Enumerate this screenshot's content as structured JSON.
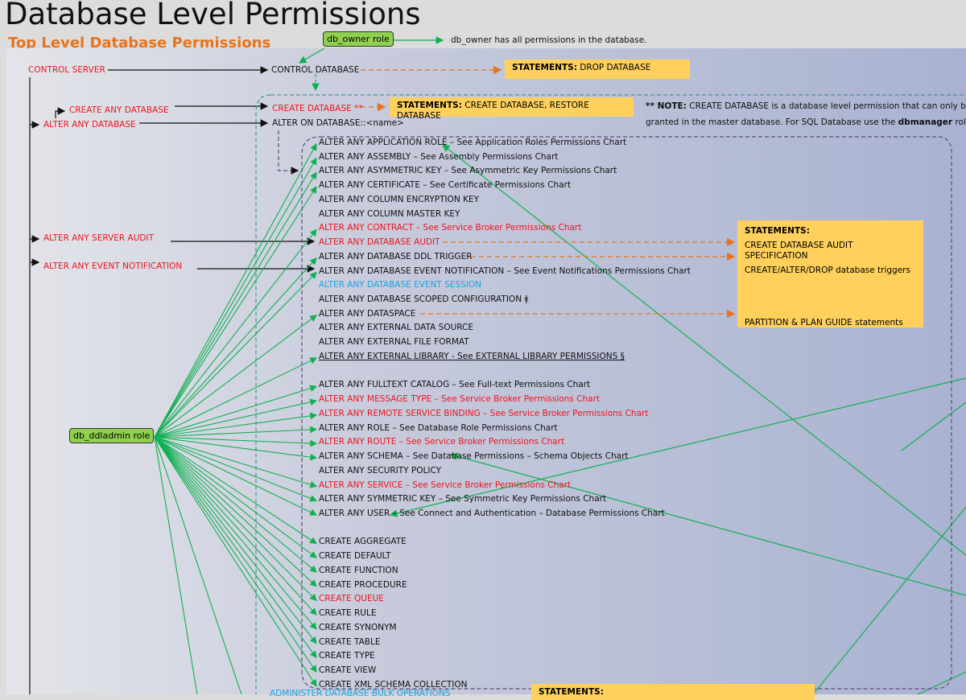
{
  "title": "Database Level Permissions",
  "subtitle": "Top Level Database Permissions",
  "roles": {
    "db_owner": "db_owner role",
    "db_owner_note": "db_owner has all permissions in the database.",
    "db_ddladmin": "db_ddladmin role"
  },
  "server_perms": {
    "control_server": "CONTROL SERVER",
    "create_any_database": "CREATE ANY DATABASE",
    "alter_any_database": "ALTER ANY DATABASE",
    "alter_any_server_audit": "ALTER ANY SERVER AUDIT",
    "alter_any_event_notification": "ALTER ANY EVENT NOTIFICATION"
  },
  "db_perms": {
    "control_database": "CONTROL DATABASE",
    "create_database": "CREATE DATABASE **",
    "alter_on_database": "ALTER ON DATABASE::<name>",
    "administer_bulk": "ADMINISTER DATABASE BULK OPERATIONS"
  },
  "statements": {
    "label": "STATEMENTS:",
    "drop": "DROP DATABASE",
    "create": "CREATE DATABASE, RESTORE DATABASE",
    "audit": "CREATE DATABASE AUDIT SPECIFICATION",
    "triggers": "CREATE/ALTER/DROP database triggers",
    "partition": "PARTITION & PLAN GUIDE statements"
  },
  "note": {
    "label": "** NOTE:",
    "text1": "CREATE DATABASE is a database level permission that can only be",
    "text2a": "granted in the master database. For SQL Database use the ",
    "text2b": "dbmanager",
    "text2c": " role."
  },
  "items": [
    {
      "text": "ALTER ANY APPLICATION ROLE – See Application Roles Permissions Chart",
      "color": "black",
      "ddl": true
    },
    {
      "text": "ALTER ANY ASSEMBLY – See Assembly Permissions Chart",
      "color": "black",
      "ddl": true
    },
    {
      "text": "ALTER ANY ASYMMETRIC KEY – See Asymmetric Key Permissions Chart",
      "color": "black",
      "ddl": true
    },
    {
      "text": "ALTER ANY CERTIFICATE – See Certificate Permissions Chart",
      "color": "black",
      "ddl": true
    },
    {
      "text": "ALTER ANY COLUMN ENCRYPTION KEY",
      "color": "black",
      "ddl": false
    },
    {
      "text": "ALTER ANY COLUMN MASTER KEY",
      "color": "black",
      "ddl": false
    },
    {
      "text": "ALTER ANY CONTRACT – See Service Broker Permissions Chart",
      "color": "red",
      "ddl": true
    },
    {
      "text": "ALTER ANY DATABASE AUDIT",
      "color": "red",
      "ddl": false
    },
    {
      "text": "ALTER ANY DATABASE DDL TRIGGER",
      "color": "black",
      "ddl": true
    },
    {
      "text": "ALTER ANY DATABASE EVENT NOTIFICATION – See Event Notifications Permissions Chart",
      "color": "black",
      "ddl": true
    },
    {
      "text": "ALTER ANY DATABASE EVENT SESSION",
      "color": "cyan",
      "ddl": false
    },
    {
      "text": "ALTER ANY DATABASE SCOPED CONFIGURATION ǂ",
      "color": "black",
      "ddl": false
    },
    {
      "text": "ALTER ANY DATASPACE",
      "color": "black",
      "ddl": true
    },
    {
      "text": "ALTER ANY EXTERNAL DATA SOURCE",
      "color": "black",
      "ddl": false
    },
    {
      "text": "ALTER ANY EXTERNAL FILE FORMAT",
      "color": "black",
      "ddl": false
    },
    {
      "text": "ALTER ANY EXTERNAL LIBRARY - See EXTERNAL LIBRARY PERMISSIONS §",
      "color": "underline",
      "ddl": true
    },
    null,
    {
      "text": "ALTER ANY FULLTEXT CATALOG – See Full-text Permissions Chart",
      "color": "black",
      "ddl": true
    },
    {
      "text": "ALTER ANY MESSAGE TYPE – See Service Broker Permissions Chart",
      "color": "red",
      "ddl": true
    },
    {
      "text": "ALTER ANY REMOTE SERVICE BINDING – See Service Broker Permissions Chart",
      "color": "red",
      "ddl": true
    },
    {
      "text": "ALTER ANY ROLE – See Database Role Permissions Chart",
      "color": "black",
      "ddl": true
    },
    {
      "text": "ALTER ANY ROUTE – See Service Broker Permissions Chart",
      "color": "red",
      "ddl": true
    },
    {
      "text": "ALTER ANY SCHEMA – See Database Permissions – Schema Objects Chart",
      "color": "black",
      "ddl": true
    },
    {
      "text": "ALTER ANY SECURITY POLICY",
      "color": "black",
      "ddl": false
    },
    {
      "text": "ALTER ANY SERVICE – See Service Broker Permissions Chart",
      "color": "red",
      "ddl": true
    },
    {
      "text": "ALTER ANY SYMMETRIC KEY – See Symmetric Key Permissions Chart",
      "color": "black",
      "ddl": true
    },
    {
      "text": "ALTER ANY USER – See Connect and Authentication – Database Permissions Chart",
      "color": "black",
      "ddl": true
    },
    null,
    {
      "text": "CREATE AGGREGATE",
      "color": "black",
      "ddl": true
    },
    {
      "text": "CREATE DEFAULT",
      "color": "black",
      "ddl": true
    },
    {
      "text": "CREATE FUNCTION",
      "color": "black",
      "ddl": true
    },
    {
      "text": "CREATE PROCEDURE",
      "color": "black",
      "ddl": true
    },
    {
      "text": "CREATE QUEUE",
      "color": "red",
      "ddl": true
    },
    {
      "text": "CREATE RULE",
      "color": "black",
      "ddl": true
    },
    {
      "text": "CREATE SYNONYM",
      "color": "black",
      "ddl": true
    },
    {
      "text": "CREATE TABLE",
      "color": "black",
      "ddl": true
    },
    {
      "text": "CREATE TYPE",
      "color": "black",
      "ddl": true
    },
    {
      "text": "CREATE VIEW",
      "color": "black",
      "ddl": true
    },
    {
      "text": "CREATE XML SCHEMA COLLECTION",
      "color": "black",
      "ddl": true
    }
  ],
  "colors": {
    "red": "#f0141e",
    "cyan": "#1aa3e0",
    "green": "#10b050",
    "orange": "#e8731c",
    "box": "#ffd15c",
    "role": "#8fd14f"
  }
}
